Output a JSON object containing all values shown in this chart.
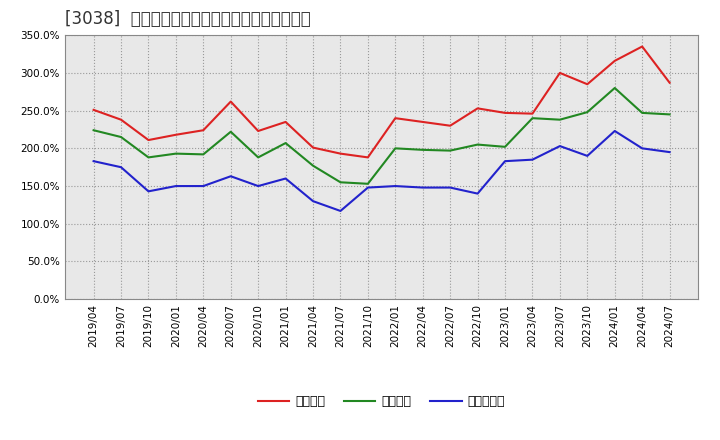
{
  "title": "[3038]  流動比率、当座比率、現預金比率の推移",
  "ylim": [
    0,
    350
  ],
  "yticks": [
    0,
    50,
    100,
    150,
    200,
    250,
    300,
    350
  ],
  "background_color": "#ffffff",
  "plot_bg_color": "#e8e8e8",
  "grid_color": "#999999",
  "dates": [
    "2019/04",
    "2019/07",
    "2019/10",
    "2020/01",
    "2020/04",
    "2020/07",
    "2020/10",
    "2021/01",
    "2021/04",
    "2021/07",
    "2021/10",
    "2022/01",
    "2022/04",
    "2022/07",
    "2022/10",
    "2023/01",
    "2023/04",
    "2023/07",
    "2023/10",
    "2024/01",
    "2024/04",
    "2024/07"
  ],
  "ryudo": [
    251,
    238,
    211,
    218,
    224,
    262,
    223,
    235,
    201,
    193,
    188,
    240,
    235,
    230,
    253,
    247,
    246,
    300,
    285,
    316,
    335,
    287
  ],
  "toza": [
    224,
    215,
    188,
    193,
    192,
    222,
    188,
    207,
    177,
    155,
    153,
    200,
    198,
    197,
    205,
    202,
    240,
    238,
    248,
    280,
    247,
    245
  ],
  "genyo": [
    183,
    175,
    143,
    150,
    150,
    163,
    150,
    160,
    130,
    117,
    148,
    150,
    148,
    148,
    140,
    183,
    185,
    203,
    190,
    223,
    200,
    195
  ],
  "line_colors": [
    "#dd2222",
    "#228822",
    "#2222cc"
  ],
  "legend_labels": [
    "流動比率",
    "当座比率",
    "現預金比率"
  ],
  "title_fontsize": 12,
  "tick_fontsize": 7.5,
  "legend_fontsize": 9
}
